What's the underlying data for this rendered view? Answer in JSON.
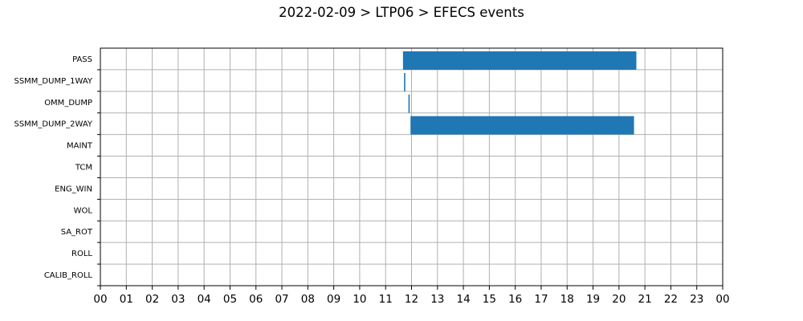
{
  "chart_data": {
    "type": "bar",
    "orientation": "horizontal-timeline",
    "title": "2022-02-09 > LTP06 > EFECS events",
    "xlabel": "",
    "ylabel": "",
    "x_unit": "hour",
    "xlim": [
      0,
      24
    ],
    "x_tick_labels": [
      "00",
      "01",
      "02",
      "03",
      "04",
      "05",
      "06",
      "07",
      "08",
      "09",
      "10",
      "11",
      "12",
      "13",
      "14",
      "15",
      "16",
      "17",
      "18",
      "19",
      "20",
      "21",
      "22",
      "23",
      "00"
    ],
    "categories": [
      "PASS",
      "SSMM_DUMP_1WAY",
      "OMM_DUMP",
      "SSMM_DUMP_2WAY",
      "MAINT",
      "TCM",
      "ENG_WIN",
      "WOL",
      "SA_ROT",
      "ROLL",
      "CALIB_ROLL"
    ],
    "events": [
      {
        "category": "PASS",
        "start": 11.67,
        "end": 20.67
      },
      {
        "category": "SSMM_DUMP_1WAY",
        "start": 11.71,
        "end": 11.76
      },
      {
        "category": "OMM_DUMP",
        "start": 11.88,
        "end": 11.93
      },
      {
        "category": "SSMM_DUMP_2WAY",
        "start": 11.96,
        "end": 20.58
      }
    ],
    "grid": true,
    "bar_color": "#1f77b4"
  }
}
